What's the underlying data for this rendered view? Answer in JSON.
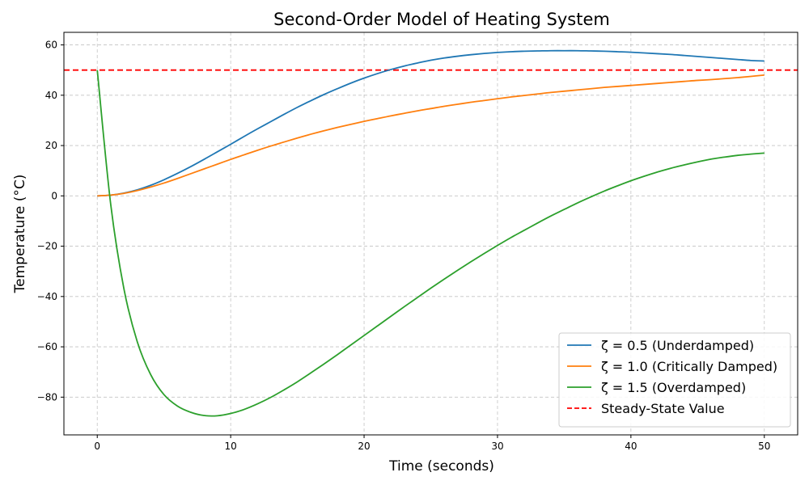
{
  "chart_data": {
    "type": "line",
    "title": "Second-Order Model of Heating System",
    "xlabel": "Time (seconds)",
    "ylabel": "Temperature (°C)",
    "xlim": [
      -2.5,
      52.5
    ],
    "ylim": [
      -95,
      65
    ],
    "xticks": [
      0,
      10,
      20,
      30,
      40,
      50
    ],
    "yticks": [
      -80,
      -60,
      -40,
      -20,
      0,
      20,
      40,
      60
    ],
    "grid": true,
    "legend_position": "bottom-right",
    "x": [
      0,
      1,
      2,
      3,
      4,
      5,
      6,
      7,
      8,
      9,
      10,
      11,
      12,
      13,
      14,
      15,
      16,
      17,
      18,
      19,
      20,
      21,
      22,
      23,
      24,
      25,
      26,
      27,
      28,
      29,
      30,
      31,
      32,
      33,
      34,
      35,
      36,
      37,
      38,
      39,
      40,
      41,
      42,
      43,
      44,
      45,
      46,
      47,
      48,
      49,
      50
    ],
    "series": [
      {
        "name": "ζ = 0.5 (Underdamped)",
        "color": "#1f77b4",
        "style": "solid",
        "values": [
          0,
          0.3,
          1.1,
          2.4,
          4.2,
          6.4,
          8.9,
          11.6,
          14.5,
          17.5,
          20.5,
          23.6,
          26.6,
          29.5,
          32.4,
          35.2,
          37.8,
          40.3,
          42.6,
          44.8,
          46.8,
          48.6,
          50.2,
          51.6,
          52.8,
          53.9,
          54.8,
          55.5,
          56.1,
          56.6,
          57.0,
          57.3,
          57.5,
          57.6,
          57.7,
          57.7,
          57.7,
          57.6,
          57.5,
          57.3,
          57.1,
          56.8,
          56.5,
          56.2,
          55.8,
          55.4,
          55.0,
          54.6,
          54.2,
          53.8,
          53.6
        ]
      },
      {
        "name": "ζ = 1.0 (Critically Damped)",
        "color": "#ff7f0e",
        "style": "solid",
        "values": [
          0,
          0.3,
          1.0,
          2.1,
          3.5,
          5.1,
          6.9,
          8.8,
          10.7,
          12.6,
          14.5,
          16.3,
          18.1,
          19.8,
          21.4,
          23.0,
          24.5,
          25.9,
          27.2,
          28.4,
          29.6,
          30.7,
          31.8,
          32.8,
          33.8,
          34.7,
          35.6,
          36.4,
          37.2,
          37.9,
          38.6,
          39.3,
          39.9,
          40.5,
          41.1,
          41.6,
          42.1,
          42.6,
          43.1,
          43.5,
          43.9,
          44.3,
          44.7,
          45.1,
          45.5,
          45.9,
          46.2,
          46.6,
          47.0,
          47.5,
          48.0
        ]
      },
      {
        "name": "ζ = 1.5 (Overdamped)",
        "color": "#2ca02c",
        "style": "solid",
        "values": [
          50,
          -3,
          -37,
          -58,
          -71,
          -79,
          -83.5,
          -86,
          -87.3,
          -87.4,
          -86.5,
          -84.9,
          -82.7,
          -80.1,
          -77.1,
          -73.9,
          -70.4,
          -66.8,
          -63.1,
          -59.3,
          -55.5,
          -51.7,
          -47.9,
          -44.1,
          -40.4,
          -36.7,
          -33.1,
          -29.6,
          -26.2,
          -22.9,
          -19.7,
          -16.6,
          -13.7,
          -10.8,
          -8.0,
          -5.4,
          -2.8,
          -0.4,
          1.9,
          4.0,
          6.0,
          7.8,
          9.5,
          11.0,
          12.3,
          13.5,
          14.6,
          15.4,
          16.1,
          16.6,
          17.0
        ]
      }
    ],
    "reference_line": {
      "name": "Steady-State Value",
      "y": 50,
      "color": "#ff0000",
      "style": "dashed"
    }
  }
}
